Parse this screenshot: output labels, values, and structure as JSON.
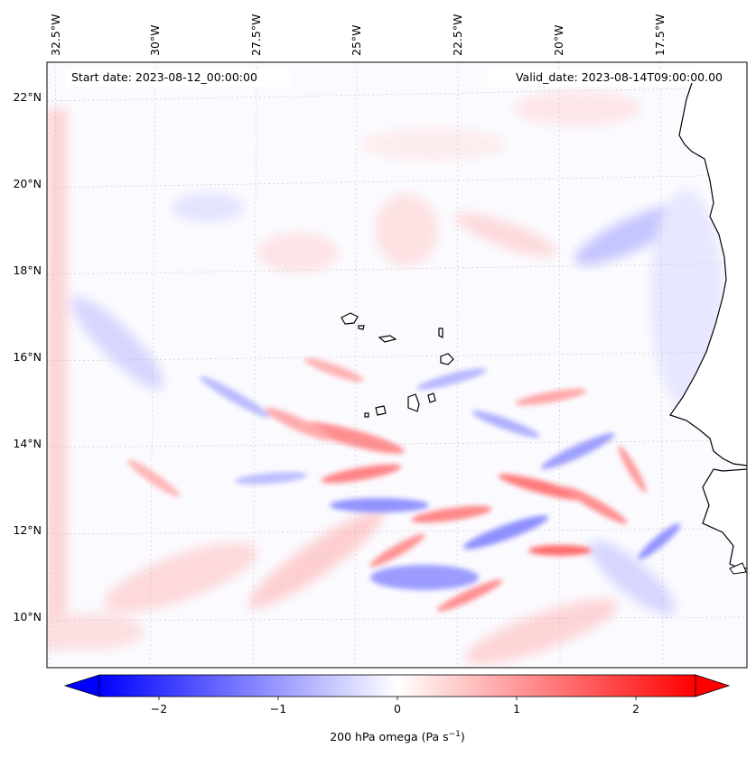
{
  "map": {
    "annotations": {
      "start_date": "Start date: 2023-08-12_00:00:00",
      "valid_date": "Valid_date: 2023-08-14T09:00:00.00"
    },
    "longitude_labels": [
      "32.5°W",
      "30°W",
      "27.5°W",
      "25°W",
      "22.5°W",
      "20°W",
      "17.5°W"
    ],
    "latitude_labels": [
      "22°N",
      "20°N",
      "18°N",
      "16°N",
      "14°N",
      "12°N",
      "10°N"
    ],
    "extent": {
      "lon_min": -33.0,
      "lon_max": -15.4,
      "lat_min": 8.9,
      "lat_max": 22.8
    },
    "field": "200 hPa omega",
    "colorbar": {
      "label_prefix": "200 hPa omega (Pa s",
      "label_exponent": "−1",
      "label_suffix": ")",
      "ticks": [
        {
          "value": -2,
          "label": "−2"
        },
        {
          "value": -1,
          "label": "−1"
        },
        {
          "value": 0,
          "label": "0"
        },
        {
          "value": 1,
          "label": "1"
        },
        {
          "value": 2,
          "label": "2"
        }
      ],
      "vmin": -2.5,
      "vmax": 2.5,
      "cmap": "bwr",
      "colors": {
        "low": "#0000ff",
        "mid": "#ffffff",
        "high": "#ff0000"
      },
      "extend": "both"
    },
    "features": [
      "coastline",
      "cape-verde-islands",
      "gridlines"
    ]
  }
}
